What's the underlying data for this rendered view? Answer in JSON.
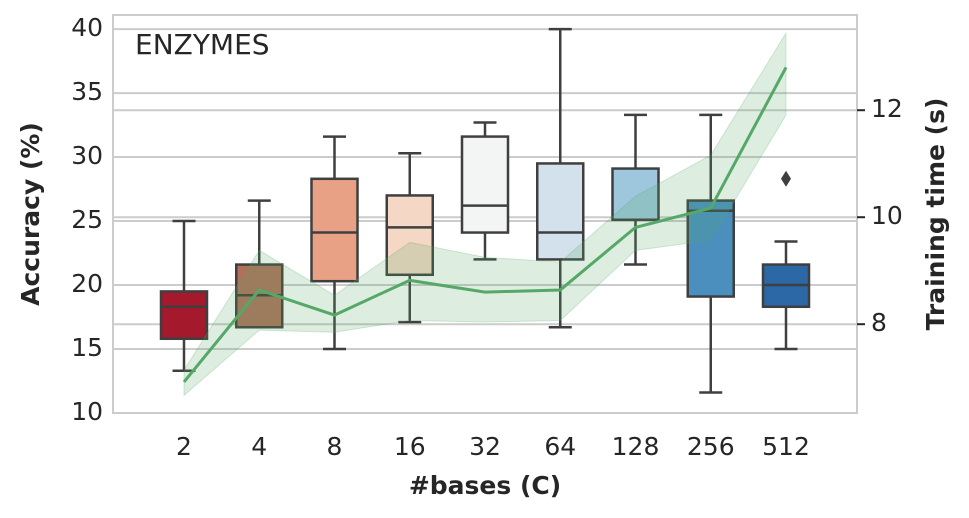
{
  "chart_data": {
    "type": "box",
    "title": "ENZYMES",
    "xlabel": "#bases (C)",
    "ylabel": "Accuracy (%)",
    "y2label": "Training time (s)",
    "categories": [
      "2",
      "4",
      "8",
      "16",
      "32",
      "64",
      "128",
      "256",
      "512"
    ],
    "colors": [
      "#a5192d",
      "#b0705a",
      "#e8a185",
      "#f5d7c5",
      "#f2f5f4",
      "#d3e1ec",
      "#9ec7dd",
      "#4a8fbe",
      "#2c68a6"
    ],
    "boxes": [
      {
        "whislo": 13.3,
        "q1": 15.8,
        "med": 18.3,
        "q3": 19.5,
        "whishi": 25.0
      },
      {
        "whislo": 16.7,
        "q1": 16.7,
        "med": 19.2,
        "q3": 21.6,
        "whishi": 26.6
      },
      {
        "whislo": 15.0,
        "q1": 20.3,
        "med": 24.1,
        "q3": 28.3,
        "whishi": 31.6
      },
      {
        "whislo": 17.1,
        "q1": 20.8,
        "med": 24.5,
        "q3": 27.0,
        "whishi": 30.3
      },
      {
        "whislo": 22.0,
        "q1": 24.1,
        "med": 26.2,
        "q3": 31.6,
        "whishi": 32.7
      },
      {
        "whislo": 16.7,
        "q1": 22.0,
        "med": 24.1,
        "q3": 29.5,
        "whishi": 40.0
      },
      {
        "whislo": 21.6,
        "q1": 25.1,
        "med": 25.1,
        "q3": 29.1,
        "whishi": 33.3
      },
      {
        "whislo": 11.6,
        "q1": 19.1,
        "med": 25.8,
        "q3": 26.6,
        "whishi": 33.3
      },
      {
        "whislo": 15.0,
        "q1": 18.3,
        "med": 20.0,
        "q3": 21.6,
        "whishi": 23.4,
        "fliers": [
          28.3
        ]
      }
    ],
    "line": {
      "axis": "y2",
      "color": "#55a868",
      "values": [
        6.92,
        8.64,
        8.17,
        8.82,
        8.6,
        8.64,
        9.81,
        10.17,
        12.8
      ],
      "lower": [
        6.67,
        7.89,
        7.85,
        8.07,
        8.04,
        8.07,
        9.38,
        9.57,
        11.91
      ],
      "upper": [
        7.14,
        9.38,
        8.54,
        9.53,
        9.25,
        9.16,
        10.39,
        11.16,
        13.44
      ]
    },
    "ylim": [
      10,
      41.1
    ],
    "yticks": [
      10,
      15,
      20,
      25,
      30,
      35,
      40
    ],
    "y2lim": [
      6.34,
      13.78
    ],
    "y2ticks": [
      8,
      10,
      12
    ],
    "grid": true
  }
}
